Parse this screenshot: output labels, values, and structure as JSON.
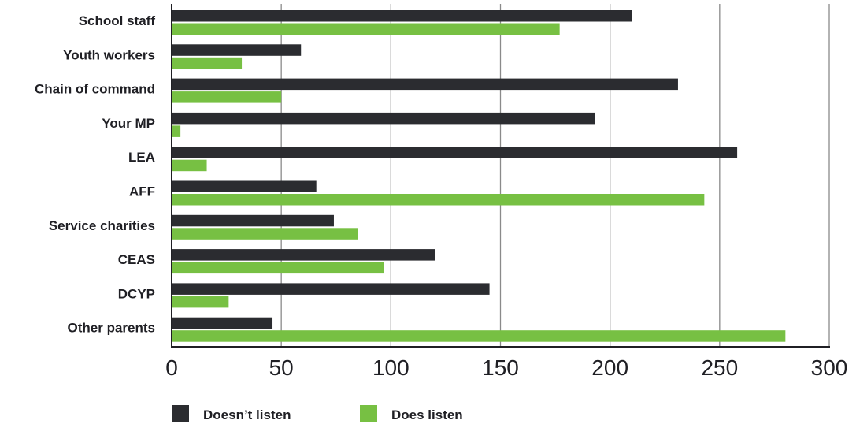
{
  "chart_data": {
    "type": "bar",
    "orientation": "horizontal",
    "categories": [
      "School staff",
      "Youth workers",
      "Chain of command",
      "Your MP",
      "LEA",
      "AFF",
      "Service charities",
      "CEAS",
      "DCYP",
      "Other parents"
    ],
    "series": [
      {
        "name": "Doesn’t listen",
        "color": "#2b2c30",
        "values": [
          210,
          59,
          231,
          193,
          258,
          66,
          74,
          120,
          145,
          46
        ]
      },
      {
        "name": "Does listen",
        "color": "#77c043",
        "values": [
          177,
          32,
          50,
          4,
          16,
          243,
          85,
          97,
          26,
          280
        ]
      }
    ],
    "xlim": [
      0,
      300
    ],
    "x_ticks": [
      0,
      50,
      100,
      150,
      200,
      250,
      300
    ],
    "grid": "vertical",
    "legend": "bottom"
  }
}
